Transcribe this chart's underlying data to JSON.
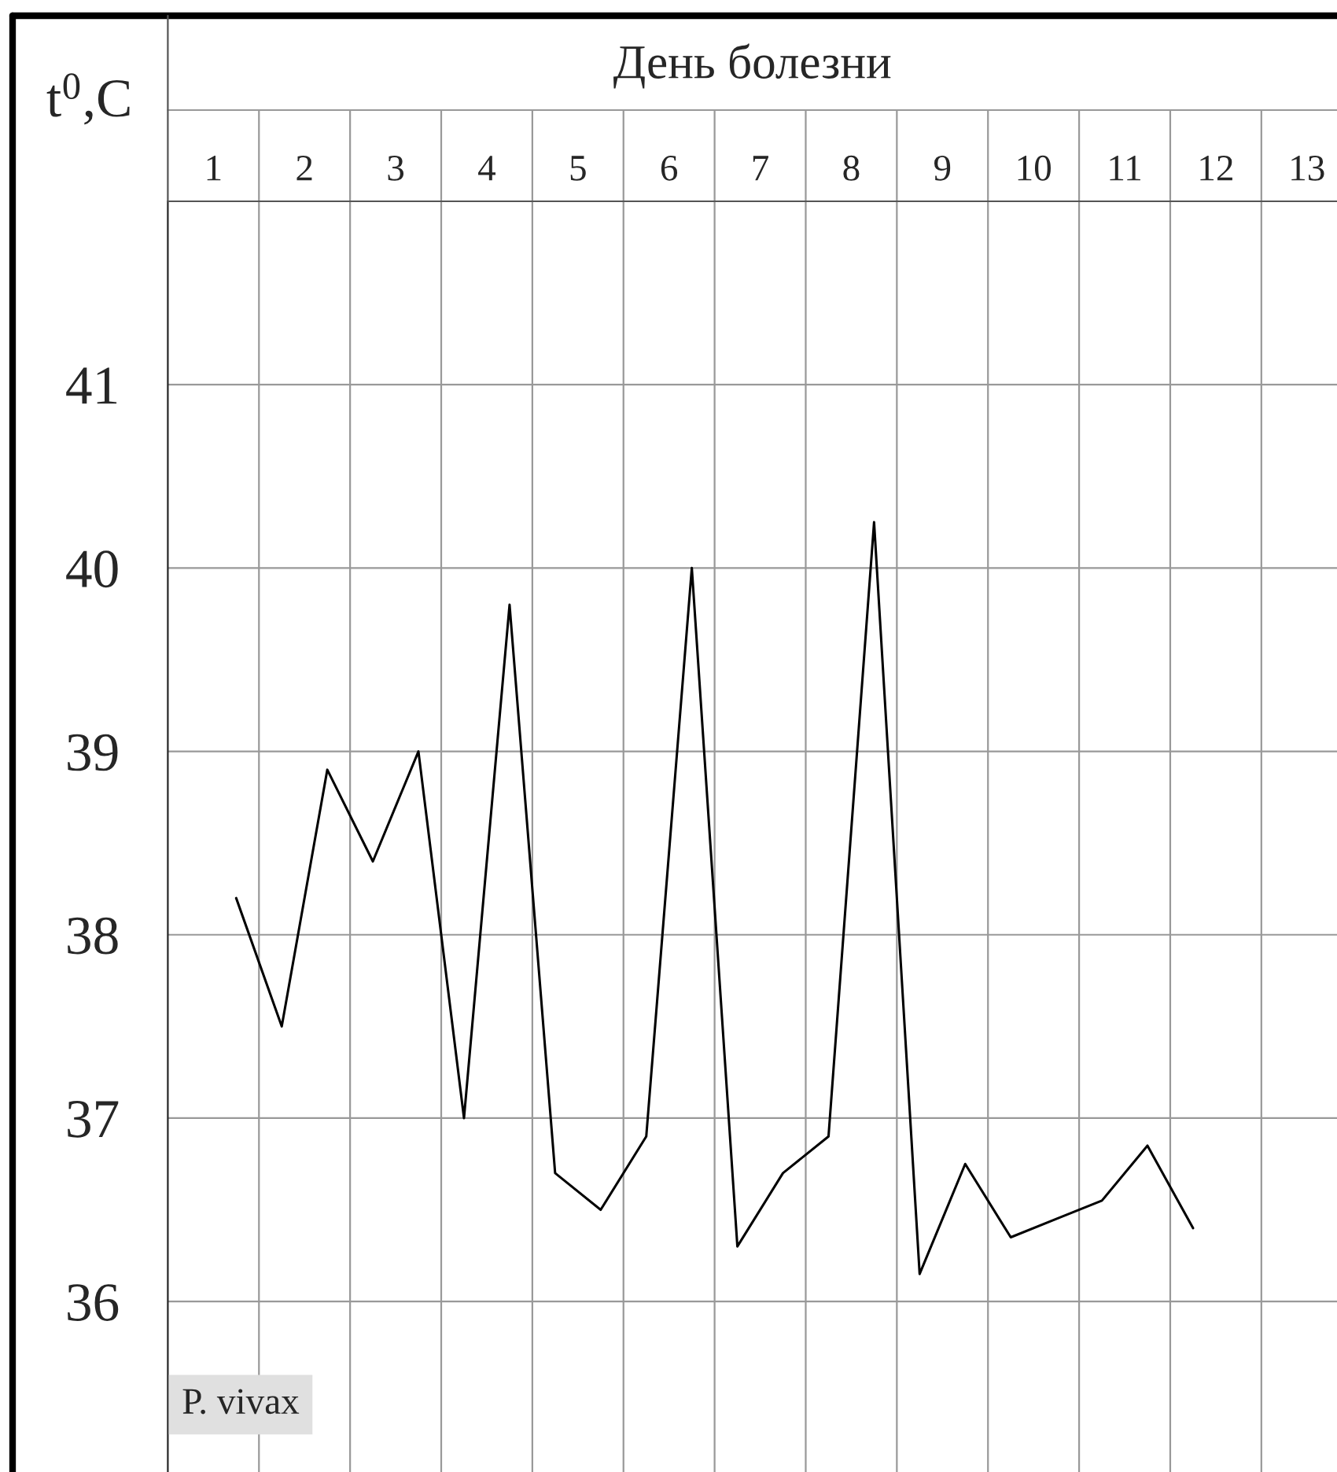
{
  "chart_data": {
    "type": "line",
    "xlabel": "День болезни",
    "ylabel": "t$^{0}$,C",
    "x": [
      1.25,
      1.75,
      2.25,
      2.75,
      3.25,
      3.75,
      4.25,
      4.75,
      5.25,
      5.75,
      6.25,
      6.75,
      7.25,
      7.75,
      8.25,
      8.75,
      9.25,
      9.75,
      10.25,
      10.75,
      11.25,
      11.75
    ],
    "series": [
      {
        "color": "#000000",
        "values": [
          38.2,
          37.5,
          38.9,
          38.4,
          39.0,
          37.0,
          39.8,
          36.7,
          36.5,
          36.9,
          40.0,
          36.3,
          36.7,
          36.9,
          40.25,
          36.15,
          36.75,
          36.35,
          36.45,
          36.55,
          36.85,
          36.4
        ]
      }
    ],
    "xlim": [
      0.5,
      13.33
    ],
    "xticks": [
      1,
      {
        "value": 1.5,
        "label": null
      },
      2,
      {
        "value": 2.5,
        "label": null
      },
      3,
      {
        "value": 3.5,
        "label": null
      },
      4,
      {
        "value": 4.5,
        "label": null
      },
      5,
      {
        "value": 5.5,
        "label": null
      },
      6,
      {
        "value": 6.5,
        "label": null
      },
      7,
      {
        "value": 7.5,
        "label": null
      },
      8,
      {
        "value": 8.5,
        "label": null
      },
      9,
      {
        "value": 9.5,
        "label": null
      },
      10,
      {
        "value": 10.5,
        "label": null
      },
      11,
      {
        "value": 11.5,
        "label": null
      },
      12,
      {
        "value": 12.5,
        "label": null
      },
      13
    ],
    "ylim": [
      35.07,
      42
    ],
    "yticks": [
      36,
      37,
      38,
      39,
      40,
      41
    ],
    "grid": true,
    "annotations": [
      "P. vivax"
    ]
  }
}
